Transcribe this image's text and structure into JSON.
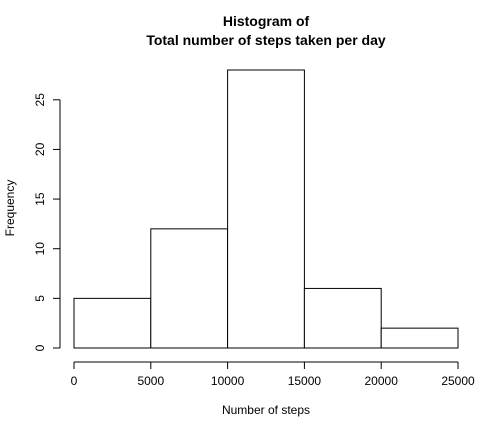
{
  "chart_data": {
    "type": "bar",
    "title_line1": "Histogram of",
    "title_line2": "Total number of steps taken per day",
    "xlabel": "Number of steps",
    "ylabel": "Frequency",
    "bins": [
      {
        "x0": 0,
        "x1": 5000,
        "value": 5
      },
      {
        "x0": 5000,
        "x1": 10000,
        "value": 12
      },
      {
        "x0": 10000,
        "x1": 15000,
        "value": 28
      },
      {
        "x0": 15000,
        "x1": 20000,
        "value": 6
      },
      {
        "x0": 20000,
        "x1": 25000,
        "value": 2
      }
    ],
    "xticks": [
      0,
      5000,
      10000,
      15000,
      20000,
      25000
    ],
    "yticks": [
      0,
      5,
      10,
      15,
      20,
      25
    ],
    "xlim": [
      0,
      25000
    ],
    "ylim": [
      0,
      28
    ],
    "bar_fill": "#ffffff",
    "bar_stroke": "#000000",
    "grid": false,
    "legend": "none"
  }
}
